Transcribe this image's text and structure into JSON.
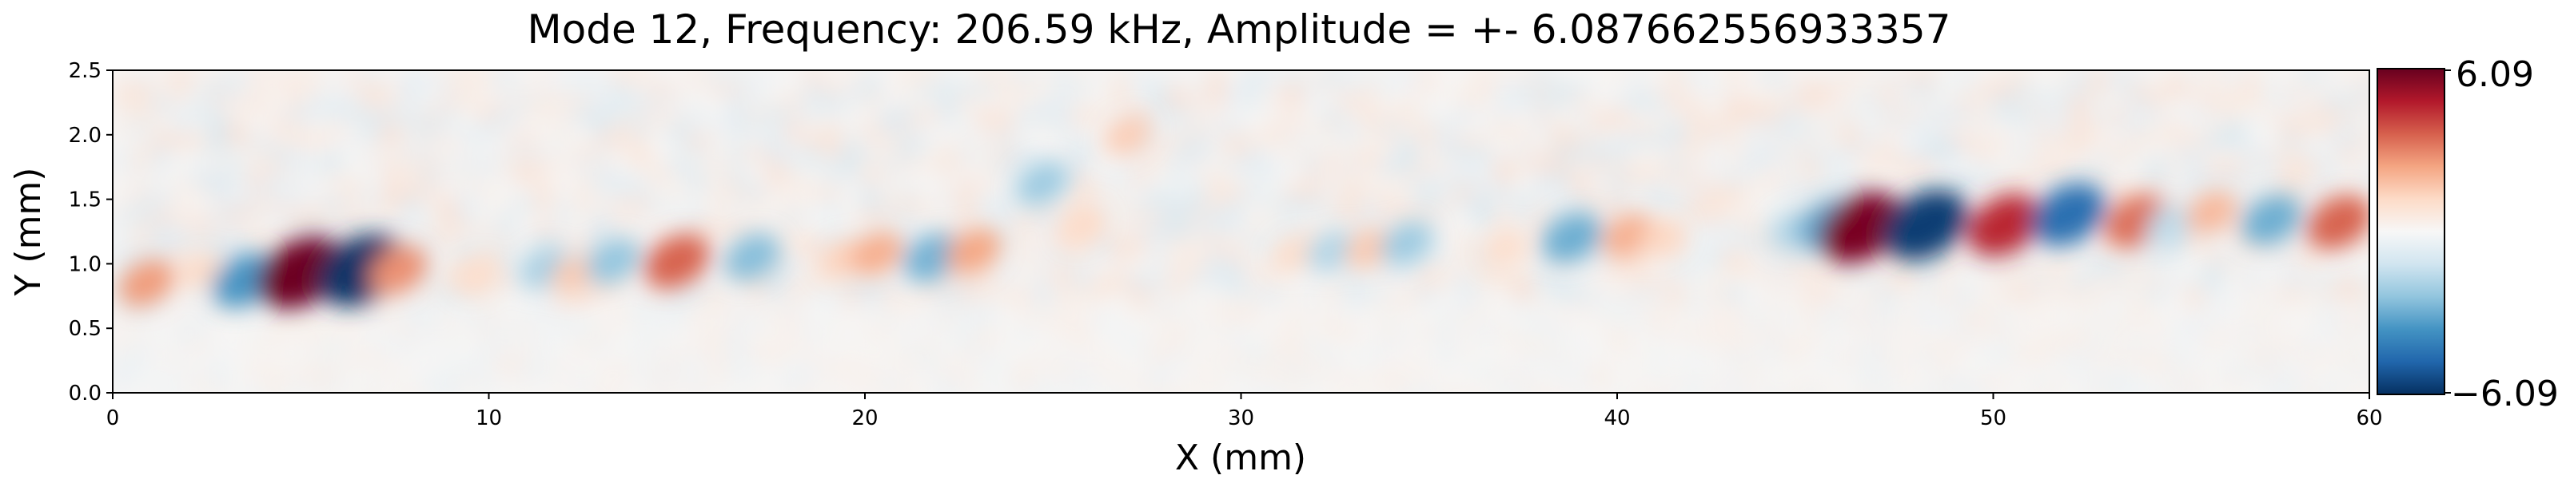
{
  "chart_data": {
    "type": "heatmap",
    "title": "Mode 12, Frequency: 206.59 kHz, Amplitude = +- 6.087662556933357",
    "xlabel": "X (mm)",
    "ylabel": "Y (mm)",
    "xlim": [
      0,
      60
    ],
    "ylim": [
      0,
      2.5
    ],
    "x_ticks": [
      "0",
      "10",
      "20",
      "30",
      "40",
      "50",
      "60"
    ],
    "y_ticks": [
      "0.0",
      "0.5",
      "1.0",
      "1.5",
      "2.0",
      "2.5"
    ],
    "colorbar": {
      "colormap": "RdBu_r",
      "min": -6.09,
      "max": 6.09,
      "min_label": "−6.09",
      "max_label": "6.09",
      "colors": [
        "#053061",
        "#2166ac",
        "#4393c3",
        "#92c5de",
        "#d1e5f0",
        "#f7f7f7",
        "#fddbc7",
        "#f4a582",
        "#d6604d",
        "#b2182b",
        "#67001f"
      ]
    },
    "features": [
      {
        "x": 0.9,
        "y": 0.85,
        "value": 2.6
      },
      {
        "x": 2.3,
        "y": 0.95,
        "value": 1.2
      },
      {
        "x": 3.5,
        "y": 0.87,
        "value": -3.6
      },
      {
        "x": 5.0,
        "y": 0.93,
        "value": 6.0
      },
      {
        "x": 6.6,
        "y": 0.95,
        "value": -6.0
      },
      {
        "x": 7.6,
        "y": 0.95,
        "value": 2.8
      },
      {
        "x": 9.7,
        "y": 0.9,
        "value": 1.1
      },
      {
        "x": 11.5,
        "y": 0.97,
        "value": -2.0
      },
      {
        "x": 12.3,
        "y": 0.92,
        "value": 1.6
      },
      {
        "x": 13.3,
        "y": 1.02,
        "value": -2.4
      },
      {
        "x": 15.0,
        "y": 1.02,
        "value": 3.6
      },
      {
        "x": 17.0,
        "y": 1.05,
        "value": -2.6
      },
      {
        "x": 19.4,
        "y": 1.04,
        "value": 1.4
      },
      {
        "x": 20.3,
        "y": 1.08,
        "value": 2.2
      },
      {
        "x": 21.8,
        "y": 1.05,
        "value": -2.9
      },
      {
        "x": 22.9,
        "y": 1.1,
        "value": 2.4
      },
      {
        "x": 24.7,
        "y": 1.62,
        "value": -2.2
      },
      {
        "x": 25.8,
        "y": 1.3,
        "value": 1.2
      },
      {
        "x": 27.0,
        "y": 2.0,
        "value": 1.5
      },
      {
        "x": 31.4,
        "y": 1.08,
        "value": 1.1
      },
      {
        "x": 32.4,
        "y": 1.1,
        "value": -1.8
      },
      {
        "x": 33.4,
        "y": 1.12,
        "value": 1.6
      },
      {
        "x": 34.4,
        "y": 1.16,
        "value": -2.2
      },
      {
        "x": 37.0,
        "y": 1.12,
        "value": 1.1
      },
      {
        "x": 38.8,
        "y": 1.2,
        "value": -3.0
      },
      {
        "x": 40.3,
        "y": 1.22,
        "value": 2.2
      },
      {
        "x": 41.2,
        "y": 1.2,
        "value": 1.3
      },
      {
        "x": 44.7,
        "y": 1.26,
        "value": -1.8
      },
      {
        "x": 45.6,
        "y": 1.3,
        "value": -3.2
      },
      {
        "x": 46.5,
        "y": 1.28,
        "value": 5.8
      },
      {
        "x": 48.2,
        "y": 1.3,
        "value": -5.8
      },
      {
        "x": 50.3,
        "y": 1.3,
        "value": 4.6
      },
      {
        "x": 52.0,
        "y": 1.38,
        "value": -4.6
      },
      {
        "x": 53.8,
        "y": 1.33,
        "value": 3.4
      },
      {
        "x": 54.7,
        "y": 1.3,
        "value": -1.6
      },
      {
        "x": 55.8,
        "y": 1.4,
        "value": 2.0
      },
      {
        "x": 57.4,
        "y": 1.34,
        "value": -3.0
      },
      {
        "x": 59.2,
        "y": 1.32,
        "value": 3.6
      }
    ]
  }
}
